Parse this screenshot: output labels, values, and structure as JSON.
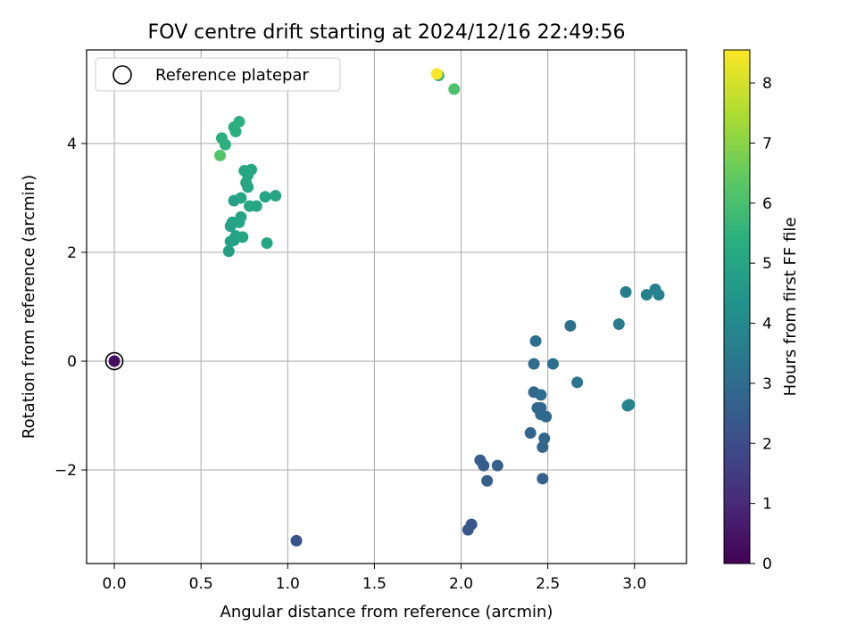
{
  "chart_data": {
    "type": "scatter",
    "title": "FOV centre drift starting at 2024/12/16 22:49:56",
    "xlabel": "Angular distance from reference (arcmin)",
    "ylabel": "Rotation from reference (arcmin)",
    "xlim": [
      -0.16,
      3.3
    ],
    "ylim": [
      -3.72,
      5.72
    ],
    "xticks": [
      0.0,
      0.5,
      1.0,
      1.5,
      2.0,
      2.5,
      3.0
    ],
    "xtick_labels": [
      "0.0",
      "0.5",
      "1.0",
      "1.5",
      "2.0",
      "2.5",
      "3.0"
    ],
    "yticks": [
      -2,
      0,
      2,
      4
    ],
    "ytick_labels": [
      "−2",
      "0",
      "2",
      "4"
    ],
    "grid": true,
    "legend": {
      "position": "top-left",
      "entries": [
        "Reference platepar"
      ]
    },
    "colorbar": {
      "label": "Hours from first FF file",
      "range": [
        0,
        8.55
      ],
      "ticks": [
        0,
        1,
        2,
        3,
        4,
        5,
        6,
        7,
        8
      ],
      "tick_labels": [
        "0",
        "1",
        "2",
        "3",
        "4",
        "5",
        "6",
        "7",
        "8"
      ],
      "colormap": "viridis"
    },
    "reference_point": {
      "x": 0.0,
      "y": 0.0
    },
    "points": [
      {
        "x": 0.0,
        "y": 0.0,
        "h": 0.3
      },
      {
        "x": 1.05,
        "y": -3.3,
        "h": 2.2
      },
      {
        "x": 2.04,
        "y": -3.1,
        "h": 2.3
      },
      {
        "x": 2.06,
        "y": -3.0,
        "h": 2.3
      },
      {
        "x": 2.11,
        "y": -1.82,
        "h": 2.5
      },
      {
        "x": 2.13,
        "y": -1.92,
        "h": 2.5
      },
      {
        "x": 2.15,
        "y": -2.2,
        "h": 2.6
      },
      {
        "x": 2.21,
        "y": -1.92,
        "h": 2.6
      },
      {
        "x": 2.4,
        "y": -1.32,
        "h": 2.8
      },
      {
        "x": 2.42,
        "y": -0.57,
        "h": 2.9
      },
      {
        "x": 2.42,
        "y": -0.05,
        "h": 3.0
      },
      {
        "x": 2.43,
        "y": 0.37,
        "h": 3.1
      },
      {
        "x": 2.44,
        "y": -0.86,
        "h": 2.9
      },
      {
        "x": 2.46,
        "y": -0.62,
        "h": 3.0
      },
      {
        "x": 2.46,
        "y": -0.86,
        "h": 2.9
      },
      {
        "x": 2.46,
        "y": -0.98,
        "h": 2.9
      },
      {
        "x": 2.47,
        "y": -1.58,
        "h": 2.8
      },
      {
        "x": 2.47,
        "y": -2.16,
        "h": 2.7
      },
      {
        "x": 2.48,
        "y": -1.42,
        "h": 2.8
      },
      {
        "x": 2.49,
        "y": -1.02,
        "h": 2.9
      },
      {
        "x": 2.53,
        "y": -0.05,
        "h": 3.1
      },
      {
        "x": 2.63,
        "y": 0.65,
        "h": 3.2
      },
      {
        "x": 2.67,
        "y": -0.39,
        "h": 3.3
      },
      {
        "x": 2.91,
        "y": 0.68,
        "h": 3.5
      },
      {
        "x": 2.95,
        "y": 1.27,
        "h": 3.6
      },
      {
        "x": 2.96,
        "y": -0.82,
        "h": 3.8
      },
      {
        "x": 2.97,
        "y": -0.8,
        "h": 3.8
      },
      {
        "x": 3.07,
        "y": 1.22,
        "h": 3.7
      },
      {
        "x": 3.12,
        "y": 1.32,
        "h": 3.7
      },
      {
        "x": 3.14,
        "y": 1.22,
        "h": 3.7
      },
      {
        "x": 0.66,
        "y": 2.02,
        "h": 4.8
      },
      {
        "x": 0.67,
        "y": 2.2,
        "h": 4.9
      },
      {
        "x": 0.67,
        "y": 2.48,
        "h": 4.9
      },
      {
        "x": 0.68,
        "y": 2.55,
        "h": 4.9
      },
      {
        "x": 0.69,
        "y": 2.22,
        "h": 4.9
      },
      {
        "x": 0.69,
        "y": 2.95,
        "h": 4.9
      },
      {
        "x": 0.7,
        "y": 2.3,
        "h": 4.9
      },
      {
        "x": 0.72,
        "y": 2.55,
        "h": 5.0
      },
      {
        "x": 0.73,
        "y": 2.65,
        "h": 5.0
      },
      {
        "x": 0.74,
        "y": 2.28,
        "h": 5.0
      },
      {
        "x": 0.73,
        "y": 3.0,
        "h": 5.0
      },
      {
        "x": 0.75,
        "y": 3.5,
        "h": 5.1
      },
      {
        "x": 0.76,
        "y": 3.28,
        "h": 5.1
      },
      {
        "x": 0.77,
        "y": 3.2,
        "h": 5.1
      },
      {
        "x": 0.77,
        "y": 3.42,
        "h": 5.1
      },
      {
        "x": 0.78,
        "y": 2.85,
        "h": 5.1
      },
      {
        "x": 0.79,
        "y": 3.52,
        "h": 5.1
      },
      {
        "x": 0.82,
        "y": 2.85,
        "h": 5.0
      },
      {
        "x": 0.87,
        "y": 3.02,
        "h": 5.0
      },
      {
        "x": 0.88,
        "y": 2.17,
        "h": 5.1
      },
      {
        "x": 0.93,
        "y": 3.04,
        "h": 5.0
      },
      {
        "x": 0.61,
        "y": 3.78,
        "h": 6.2
      },
      {
        "x": 0.62,
        "y": 4.1,
        "h": 5.4
      },
      {
        "x": 0.64,
        "y": 3.98,
        "h": 5.4
      },
      {
        "x": 0.69,
        "y": 4.3,
        "h": 5.4
      },
      {
        "x": 0.7,
        "y": 4.22,
        "h": 5.4
      },
      {
        "x": 0.72,
        "y": 4.4,
        "h": 5.4
      },
      {
        "x": 1.96,
        "y": 5.0,
        "h": 6.1
      },
      {
        "x": 1.87,
        "y": 5.25,
        "h": 5.5
      },
      {
        "x": 1.86,
        "y": 5.28,
        "h": 8.5
      }
    ]
  }
}
